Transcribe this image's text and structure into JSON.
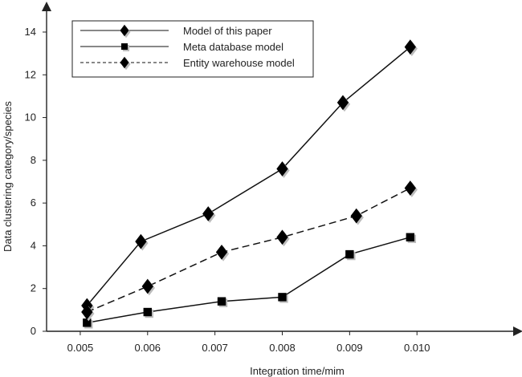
{
  "chart_data": {
    "type": "line",
    "xlabel": "Integration time/mim",
    "ylabel": "Data clustering category/species",
    "x_ticks": [
      "0.005",
      "0.006",
      "0.007",
      "0.008",
      "0.009",
      "0.010"
    ],
    "y_ticks": [
      "0",
      "2",
      "4",
      "6",
      "8",
      "10",
      "12",
      "14"
    ],
    "xlim": [
      0.0045,
      0.0115
    ],
    "ylim": [
      0,
      15.2
    ],
    "grid": false,
    "legend_position": "top-left",
    "series": [
      {
        "name": "Model of this paper",
        "line_style": "solid",
        "marker": "diamond",
        "x": [
          0.0051,
          0.0059,
          0.0069,
          0.008,
          0.0089,
          0.0099
        ],
        "y": [
          1.2,
          4.2,
          5.5,
          7.6,
          10.7,
          13.3
        ]
      },
      {
        "name": "Meta database model",
        "line_style": "solid",
        "marker": "square",
        "x": [
          0.0051,
          0.006,
          0.0071,
          0.008,
          0.009,
          0.0099
        ],
        "y": [
          0.4,
          0.9,
          1.4,
          1.6,
          3.6,
          4.4
        ]
      },
      {
        "name": "Entity warehouse model",
        "line_style": "dashed",
        "marker": "diamond",
        "x": [
          0.0051,
          0.006,
          0.0071,
          0.008,
          0.0091,
          0.0099
        ],
        "y": [
          0.9,
          2.1,
          3.7,
          4.4,
          5.4,
          6.7
        ]
      }
    ]
  }
}
